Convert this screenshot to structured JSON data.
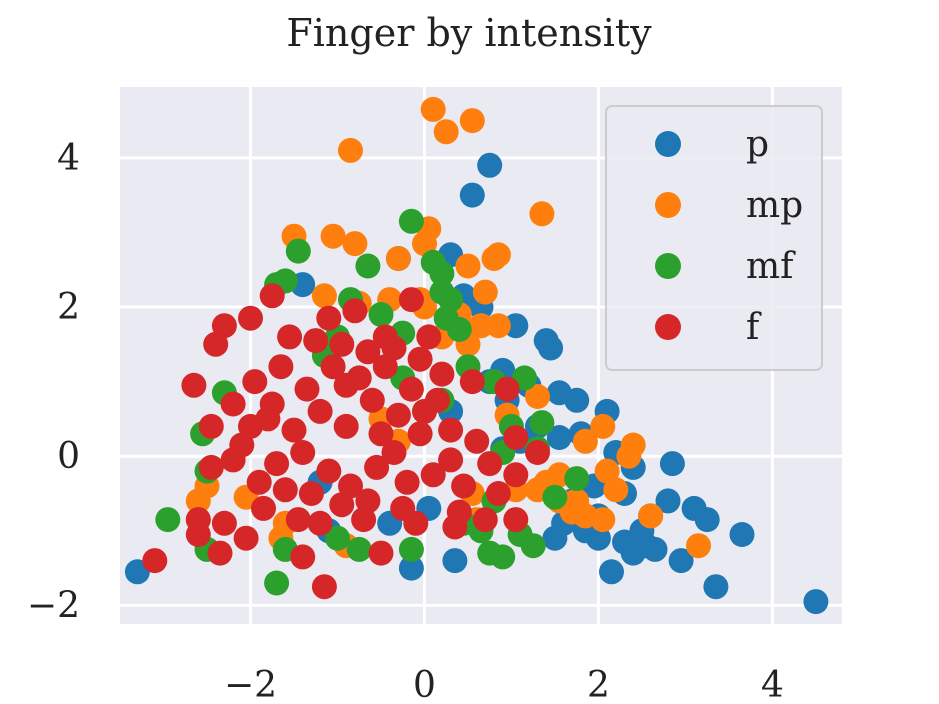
{
  "chart_data": {
    "type": "scatter",
    "title": "Finger by intensity",
    "xlabel": "",
    "ylabel": "",
    "xlim": [
      -3.5,
      4.8
    ],
    "ylim": [
      -2.25,
      4.95
    ],
    "x_ticks": [
      {
        "value": -2,
        "label": "−2"
      },
      {
        "value": 0,
        "label": "0"
      },
      {
        "value": 2,
        "label": "2"
      },
      {
        "value": 4,
        "label": "4"
      }
    ],
    "y_ticks": [
      {
        "value": -2,
        "label": "−2"
      },
      {
        "value": 0,
        "label": "0"
      },
      {
        "value": 2,
        "label": "2"
      },
      {
        "value": 4,
        "label": "4"
      }
    ],
    "grid": true,
    "background": "#eaeaf2",
    "legend": {
      "position": "top-right"
    },
    "series": [
      {
        "name": "p",
        "color": "#1f77b4",
        "points": [
          [
            -3.3,
            -1.55
          ],
          [
            -0.15,
            -1.5
          ],
          [
            0.35,
            -1.4
          ],
          [
            1.5,
            -1.1
          ],
          [
            2.15,
            -1.55
          ],
          [
            2.4,
            -1.3
          ],
          [
            2.95,
            -1.4
          ],
          [
            3.35,
            -1.75
          ],
          [
            3.65,
            -1.05
          ],
          [
            4.5,
            -1.95
          ],
          [
            2.8,
            -0.6
          ],
          [
            3.1,
            -0.7
          ],
          [
            3.25,
            -0.85
          ],
          [
            2.85,
            -0.1
          ],
          [
            2.4,
            -0.15
          ],
          [
            2.1,
            0.6
          ],
          [
            1.75,
            0.75
          ],
          [
            1.55,
            0.85
          ],
          [
            1.4,
            1.55
          ],
          [
            1.45,
            1.45
          ],
          [
            1.05,
            1.75
          ],
          [
            0.9,
            1.15
          ],
          [
            0.75,
            1.0
          ],
          [
            0.45,
            2.15
          ],
          [
            0.65,
            2.0
          ],
          [
            0.55,
            3.5
          ],
          [
            0.75,
            3.9
          ],
          [
            -0.3,
            2.65
          ],
          [
            0.3,
            2.7
          ],
          [
            -1.4,
            2.3
          ],
          [
            -1.1,
            -1.0
          ],
          [
            -0.4,
            -0.9
          ],
          [
            0.05,
            -0.7
          ],
          [
            1.85,
            -1.0
          ],
          [
            2.0,
            -1.1
          ],
          [
            2.5,
            -1.0
          ],
          [
            2.6,
            -0.8
          ],
          [
            2.3,
            -0.5
          ],
          [
            1.95,
            -0.4
          ],
          [
            1.7,
            -0.6
          ],
          [
            2.3,
            -1.15
          ],
          [
            2.55,
            -1.2
          ],
          [
            1.6,
            -0.9
          ],
          [
            1.8,
            0.3
          ],
          [
            2.2,
            0.05
          ],
          [
            1.3,
            0.4
          ],
          [
            1.1,
            0.2
          ],
          [
            0.95,
            0.75
          ],
          [
            1.2,
            0.95
          ],
          [
            -1.2,
            -0.35
          ],
          [
            0.9,
            0.1
          ],
          [
            2.65,
            -1.25
          ],
          [
            1.55,
            0.25
          ],
          [
            2.0,
            -0.8
          ],
          [
            0.3,
            0.6
          ]
        ]
      },
      {
        "name": "mp",
        "color": "#ff7f0e",
        "points": [
          [
            0.1,
            4.65
          ],
          [
            0.25,
            4.35
          ],
          [
            0.55,
            4.5
          ],
          [
            -0.85,
            4.1
          ],
          [
            1.35,
            3.25
          ],
          [
            -1.5,
            2.95
          ],
          [
            -1.05,
            2.95
          ],
          [
            -0.8,
            2.85
          ],
          [
            -0.3,
            2.65
          ],
          [
            0.0,
            2.85
          ],
          [
            0.05,
            3.05
          ],
          [
            0.5,
            2.55
          ],
          [
            0.8,
            2.65
          ],
          [
            0.85,
            2.7
          ],
          [
            0.7,
            2.2
          ],
          [
            -1.15,
            2.15
          ],
          [
            -0.75,
            2.05
          ],
          [
            -0.4,
            2.1
          ],
          [
            -0.05,
            2.1
          ],
          [
            0.4,
            1.9
          ],
          [
            0.65,
            1.75
          ],
          [
            0.85,
            1.75
          ],
          [
            0.2,
            1.6
          ],
          [
            0.5,
            1.5
          ],
          [
            -2.6,
            -0.6
          ],
          [
            -2.5,
            -0.4
          ],
          [
            -2.05,
            -0.55
          ],
          [
            -1.6,
            -0.9
          ],
          [
            -1.65,
            -1.1
          ],
          [
            -0.9,
            -1.2
          ],
          [
            0.55,
            -0.5
          ],
          [
            0.8,
            -0.6
          ],
          [
            1.05,
            -0.45
          ],
          [
            1.3,
            -0.45
          ],
          [
            1.4,
            -0.35
          ],
          [
            1.55,
            -0.25
          ],
          [
            1.7,
            -0.75
          ],
          [
            1.85,
            -0.8
          ],
          [
            2.05,
            -0.85
          ],
          [
            2.2,
            -0.45
          ],
          [
            2.1,
            -0.2
          ],
          [
            2.6,
            -0.8
          ],
          [
            3.15,
            -1.2
          ],
          [
            2.4,
            0.15
          ],
          [
            2.05,
            0.4
          ],
          [
            1.85,
            0.2
          ],
          [
            1.3,
            0.8
          ],
          [
            0.95,
            0.55
          ],
          [
            -0.3,
            0.2
          ],
          [
            0.6,
            -0.85
          ],
          [
            1.55,
            -0.6
          ],
          [
            -0.5,
            0.5
          ],
          [
            1.75,
            -0.6
          ],
          [
            2.35,
            0.0
          ],
          [
            0.0,
            2.0
          ]
        ]
      },
      {
        "name": "mf",
        "color": "#2ca02c",
        "points": [
          [
            -0.15,
            3.15
          ],
          [
            -1.45,
            2.75
          ],
          [
            -0.65,
            2.55
          ],
          [
            0.1,
            2.6
          ],
          [
            0.2,
            2.45
          ],
          [
            -1.6,
            2.35
          ],
          [
            -1.7,
            2.3
          ],
          [
            -0.85,
            2.1
          ],
          [
            0.2,
            2.2
          ],
          [
            0.3,
            2.1
          ],
          [
            0.25,
            1.85
          ],
          [
            0.4,
            1.7
          ],
          [
            -0.25,
            1.65
          ],
          [
            -1.15,
            1.35
          ],
          [
            1.15,
            1.05
          ],
          [
            1.35,
            0.45
          ],
          [
            -2.6,
            -0.85
          ],
          [
            -2.95,
            -0.85
          ],
          [
            -2.5,
            -1.25
          ],
          [
            -1.7,
            -1.7
          ],
          [
            -0.15,
            -1.25
          ],
          [
            0.75,
            -1.3
          ],
          [
            0.9,
            -1.35
          ],
          [
            1.25,
            -1.2
          ],
          [
            1.1,
            -1.05
          ],
          [
            1.75,
            -0.3
          ],
          [
            -2.55,
            0.3
          ],
          [
            -2.5,
            -0.2
          ],
          [
            -2.3,
            0.85
          ],
          [
            0.2,
            0.75
          ],
          [
            -0.25,
            1.05
          ],
          [
            0.9,
            0.05
          ],
          [
            1.3,
            0.1
          ],
          [
            0.8,
            -0.6
          ],
          [
            0.65,
            -1.0
          ],
          [
            -1.0,
            -1.1
          ],
          [
            -0.75,
            -1.25
          ],
          [
            -1.6,
            -1.25
          ],
          [
            0.45,
            -0.9
          ],
          [
            1.5,
            -0.55
          ],
          [
            0.5,
            1.2
          ],
          [
            -0.5,
            1.9
          ],
          [
            0.8,
            1.0
          ],
          [
            1.0,
            0.4
          ],
          [
            -1.0,
            1.6
          ]
        ]
      },
      {
        "name": "f",
        "color": "#d62728",
        "points": [
          [
            -3.1,
            -1.4
          ],
          [
            -2.6,
            -0.85
          ],
          [
            -2.35,
            -1.3
          ],
          [
            -2.05,
            -1.1
          ],
          [
            -2.6,
            -1.05
          ],
          [
            -1.4,
            -1.35
          ],
          [
            -1.15,
            -1.75
          ],
          [
            -0.5,
            -1.3
          ],
          [
            -2.65,
            0.95
          ],
          [
            -2.4,
            1.5
          ],
          [
            -2.3,
            1.75
          ],
          [
            -2.0,
            1.85
          ],
          [
            -1.75,
            2.15
          ],
          [
            -0.15,
            2.1
          ],
          [
            -1.1,
            1.85
          ],
          [
            -0.8,
            1.95
          ],
          [
            -0.45,
            1.6
          ],
          [
            -0.05,
            1.3
          ],
          [
            0.2,
            1.1
          ],
          [
            0.55,
            1.0
          ],
          [
            0.95,
            0.9
          ],
          [
            1.05,
            0.25
          ],
          [
            1.3,
            0.05
          ],
          [
            1.05,
            -0.25
          ],
          [
            1.05,
            -0.85
          ],
          [
            0.7,
            -0.85
          ],
          [
            0.35,
            -0.95
          ],
          [
            -0.1,
            -0.9
          ],
          [
            -0.7,
            -0.85
          ],
          [
            -1.2,
            -0.9
          ],
          [
            -1.85,
            -0.7
          ],
          [
            -2.3,
            -0.9
          ],
          [
            -2.45,
            -0.15
          ],
          [
            -2.45,
            0.4
          ],
          [
            -2.1,
            0.15
          ],
          [
            -1.8,
            0.5
          ],
          [
            -1.5,
            0.35
          ],
          [
            -1.2,
            0.6
          ],
          [
            -0.9,
            0.4
          ],
          [
            -0.6,
            0.75
          ],
          [
            -0.3,
            0.55
          ],
          [
            0.0,
            0.6
          ],
          [
            0.3,
            0.35
          ],
          [
            0.6,
            0.2
          ],
          [
            0.75,
            -0.1
          ],
          [
            0.45,
            -0.4
          ],
          [
            0.1,
            -0.25
          ],
          [
            -0.2,
            -0.35
          ],
          [
            -0.55,
            -0.15
          ],
          [
            -0.85,
            -0.4
          ],
          [
            -1.1,
            -0.2
          ],
          [
            -1.4,
            0.05
          ],
          [
            -1.7,
            -0.1
          ],
          [
            -2.0,
            0.4
          ],
          [
            -2.2,
            0.7
          ],
          [
            -1.95,
            1.0
          ],
          [
            -1.65,
            1.2
          ],
          [
            -1.35,
            0.9
          ],
          [
            -1.05,
            1.2
          ],
          [
            -0.75,
            1.05
          ],
          [
            -0.45,
            1.2
          ],
          [
            -0.15,
            0.9
          ],
          [
            0.15,
            0.75
          ],
          [
            -0.05,
            0.3
          ],
          [
            -0.35,
            0.05
          ],
          [
            -0.65,
            -0.6
          ],
          [
            -0.95,
            -0.65
          ],
          [
            -1.3,
            -0.5
          ],
          [
            -1.6,
            -0.45
          ],
          [
            -1.9,
            -0.35
          ],
          [
            -2.2,
            -0.05
          ],
          [
            -1.25,
            1.55
          ],
          [
            -0.95,
            1.5
          ],
          [
            -0.65,
            1.4
          ],
          [
            -0.35,
            1.45
          ],
          [
            0.4,
            -0.75
          ],
          [
            0.85,
            -0.5
          ],
          [
            -1.55,
            1.6
          ],
          [
            -0.9,
            0.95
          ],
          [
            -0.5,
            0.3
          ],
          [
            0.05,
            1.6
          ],
          [
            -1.75,
            0.7
          ],
          [
            -1.45,
            -0.85
          ],
          [
            -0.25,
            -0.7
          ],
          [
            0.3,
            -0.05
          ]
        ]
      }
    ]
  }
}
